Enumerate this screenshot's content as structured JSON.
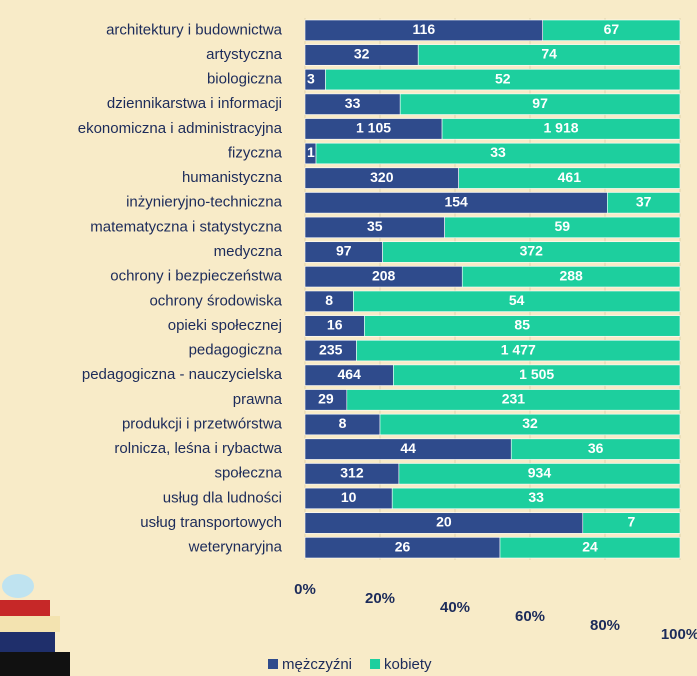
{
  "chart_data": {
    "type": "bar",
    "orientation": "horizontal",
    "stacking": "percent",
    "categories": [
      "architektury i budownictwa",
      "artystyczna",
      "biologiczna",
      "dziennikarstwa i informacji",
      "ekonomiczna i administracyjna",
      "fizyczna",
      "humanistyczna",
      "inżynieryjno-techniczna",
      "matematyczna i statystyczna",
      "medyczna",
      "ochrony i bezpieczeństwa",
      "ochrony środowiska",
      "opieki społecznej",
      "pedagogiczna",
      "pedagogiczna - nauczycielska",
      "prawna",
      "produkcji i przetwórstwa",
      "rolnicza, leśna i rybactwa",
      "społeczna",
      "usług dla ludności",
      "usług transportowych",
      "weterynaryjna"
    ],
    "series": [
      {
        "name": "mężczyźni",
        "color": "#2f4b8c",
        "values": [
          116,
          32,
          3,
          33,
          1105,
          1,
          320,
          154,
          35,
          97,
          208,
          8,
          16,
          235,
          464,
          29,
          8,
          44,
          312,
          10,
          20,
          26
        ],
        "value_labels": [
          "116",
          "32",
          "3",
          "33",
          "1 105",
          "1",
          "320",
          "154",
          "35",
          "97",
          "208",
          "8",
          "16",
          "235",
          "464",
          "29",
          "8",
          "44",
          "312",
          "10",
          "20",
          "26"
        ]
      },
      {
        "name": "kobiety",
        "color": "#1dcf9e",
        "values": [
          67,
          74,
          52,
          97,
          1918,
          33,
          461,
          37,
          59,
          372,
          288,
          54,
          85,
          1477,
          1505,
          231,
          32,
          36,
          934,
          33,
          7,
          24
        ],
        "value_labels": [
          "67",
          "74",
          "52",
          "97",
          "1 918",
          "33",
          "461",
          "37",
          "59",
          "372",
          "288",
          "54",
          "85",
          "1 477",
          "1 505",
          "231",
          "32",
          "36",
          "934",
          "33",
          "7",
          "24"
        ]
      }
    ],
    "xlim": [
      0,
      100
    ],
    "xticks": [
      {
        "value": 0,
        "label": "0%"
      },
      {
        "value": 20,
        "label": "20%"
      },
      {
        "value": 40,
        "label": "40%"
      },
      {
        "value": 60,
        "label": "60%"
      },
      {
        "value": 80,
        "label": "80%"
      },
      {
        "value": 100,
        "label": "100%"
      }
    ],
    "legend": "bottom"
  }
}
